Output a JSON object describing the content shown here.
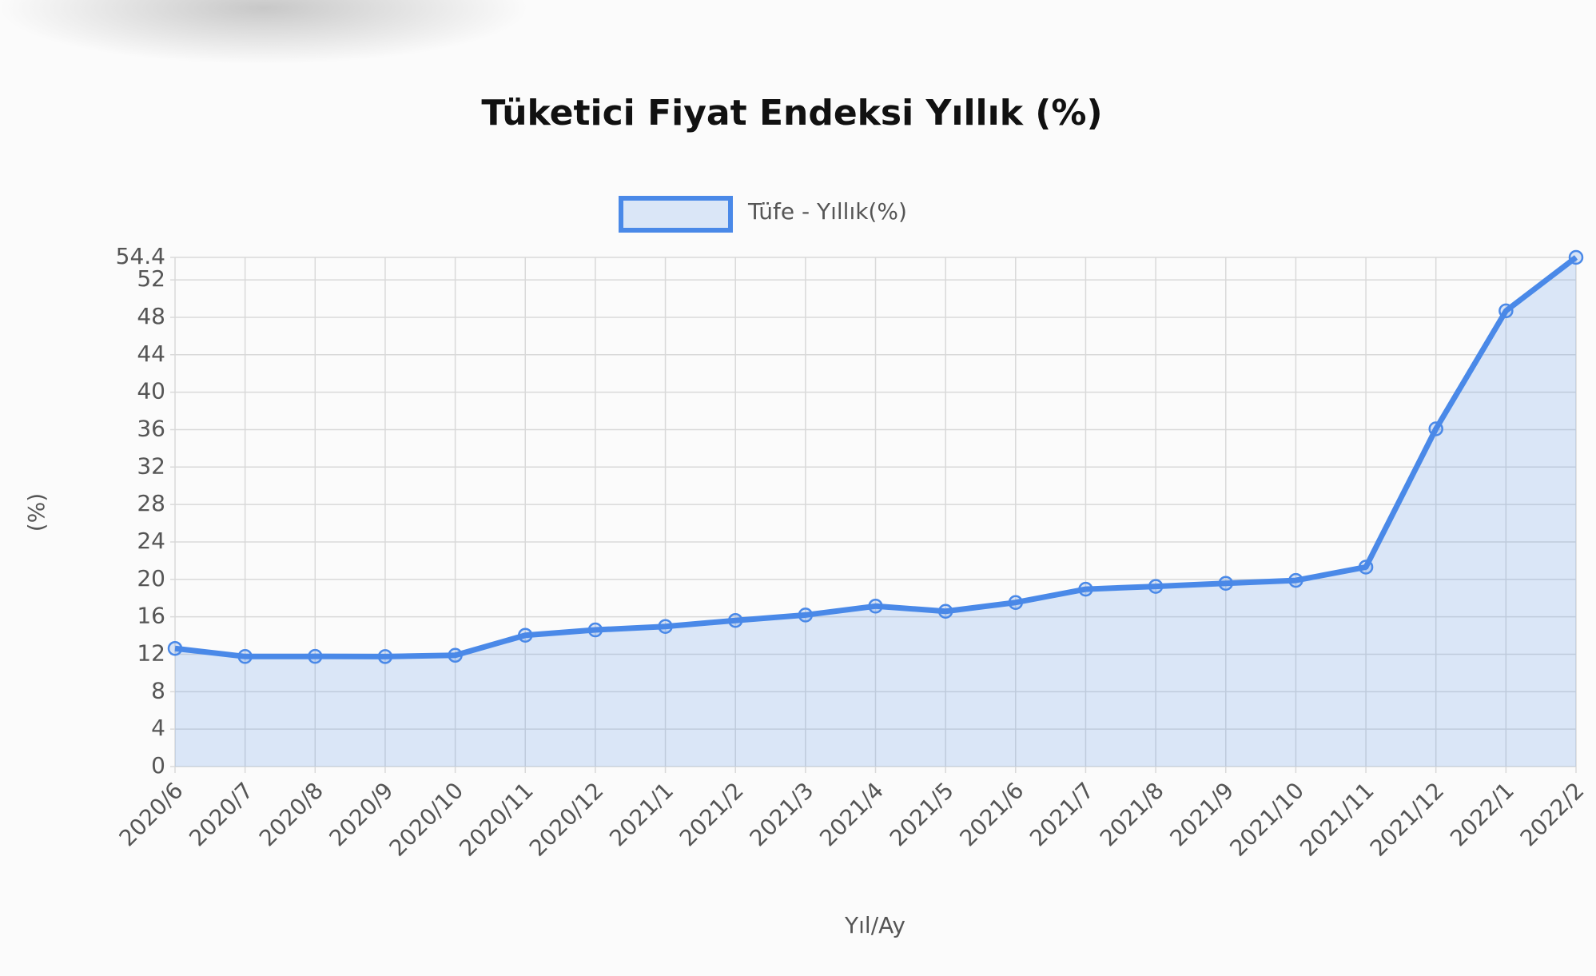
{
  "chart_data": {
    "type": "line",
    "title": "Tüketici Fiyat Endeksi Yıllık (%)",
    "x_label": "Yıl/Ay",
    "y_label": "(%)",
    "categories": [
      "2020/6",
      "2020/7",
      "2020/8",
      "2020/9",
      "2020/10",
      "2020/11",
      "2020/12",
      "2021/1",
      "2021/2",
      "2021/3",
      "2021/4",
      "2021/5",
      "2021/6",
      "2021/7",
      "2021/8",
      "2021/9",
      "2021/10",
      "2021/11",
      "2021/12",
      "2022/1",
      "2022/2"
    ],
    "series": [
      {
        "name": "Tüfe - Yıllık(%)",
        "color": "#4a89e8",
        "fill": "rgba(74,137,232,0.18)",
        "values": [
          12.62,
          11.76,
          11.77,
          11.75,
          11.89,
          14.03,
          14.6,
          14.97,
          15.61,
          16.19,
          17.14,
          16.59,
          17.53,
          18.95,
          19.25,
          19.58,
          19.89,
          21.31,
          36.08,
          48.69,
          54.4
        ]
      }
    ],
    "ylim": [
      0,
      54.4
    ],
    "yticks": [
      0,
      4,
      8,
      12,
      16,
      20,
      24,
      28,
      32,
      36,
      40,
      44,
      48,
      52,
      54.4
    ],
    "grid": true
  }
}
